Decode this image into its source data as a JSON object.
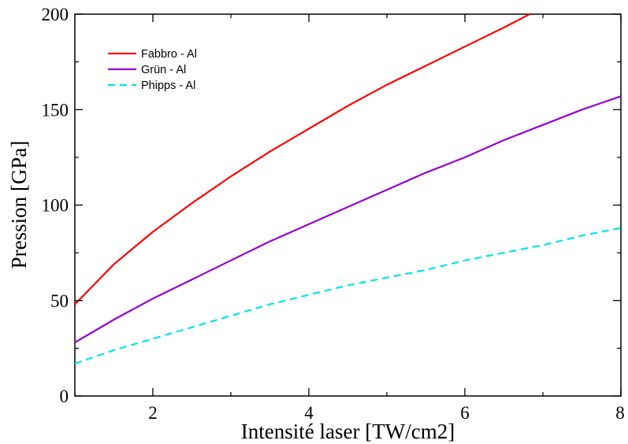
{
  "chart_data": {
    "type": "line",
    "xlabel": "Intensité laser [TW/cm2]",
    "ylabel": "Pression [GPa]",
    "xlim": [
      1,
      8
    ],
    "ylim": [
      0,
      200
    ],
    "x_ticks": [
      2,
      4,
      6,
      8
    ],
    "y_ticks": [
      0,
      50,
      100,
      150,
      200
    ],
    "grid": false,
    "legend_position": "top-left",
    "series": [
      {
        "name": "Fabbro - Al",
        "color": "#ff0000",
        "dash": "solid",
        "points": [
          [
            1.0,
            48
          ],
          [
            1.5,
            69
          ],
          [
            2.0,
            86
          ],
          [
            2.5,
            101
          ],
          [
            3.0,
            115
          ],
          [
            3.5,
            128
          ],
          [
            4.0,
            140
          ],
          [
            4.5,
            152
          ],
          [
            5.0,
            163
          ],
          [
            5.5,
            173
          ],
          [
            6.0,
            183
          ],
          [
            6.5,
            193
          ],
          [
            6.83,
            200
          ]
        ]
      },
      {
        "name": "Grün - Al",
        "color": "#9400d3",
        "dash": "solid",
        "points": [
          [
            1.0,
            28
          ],
          [
            1.5,
            40
          ],
          [
            2.0,
            51
          ],
          [
            2.5,
            61
          ],
          [
            3.0,
            71
          ],
          [
            3.5,
            81
          ],
          [
            4.0,
            90
          ],
          [
            4.5,
            99
          ],
          [
            5.0,
            108
          ],
          [
            5.5,
            117
          ],
          [
            6.0,
            125
          ],
          [
            6.5,
            134
          ],
          [
            7.0,
            142
          ],
          [
            7.5,
            150
          ],
          [
            8.0,
            157
          ]
        ]
      },
      {
        "name": "Phipps - Al",
        "color": "#00e5ee",
        "dash": "dashed",
        "points": [
          [
            1.0,
            17
          ],
          [
            1.5,
            24
          ],
          [
            2.0,
            30
          ],
          [
            2.5,
            36
          ],
          [
            3.0,
            42
          ],
          [
            3.5,
            48
          ],
          [
            4.0,
            53
          ],
          [
            4.5,
            58
          ],
          [
            5.0,
            62
          ],
          [
            5.5,
            66
          ],
          [
            6.0,
            71
          ],
          [
            6.5,
            75
          ],
          [
            7.0,
            79
          ],
          [
            7.5,
            84
          ],
          [
            8.0,
            88
          ]
        ]
      }
    ]
  }
}
